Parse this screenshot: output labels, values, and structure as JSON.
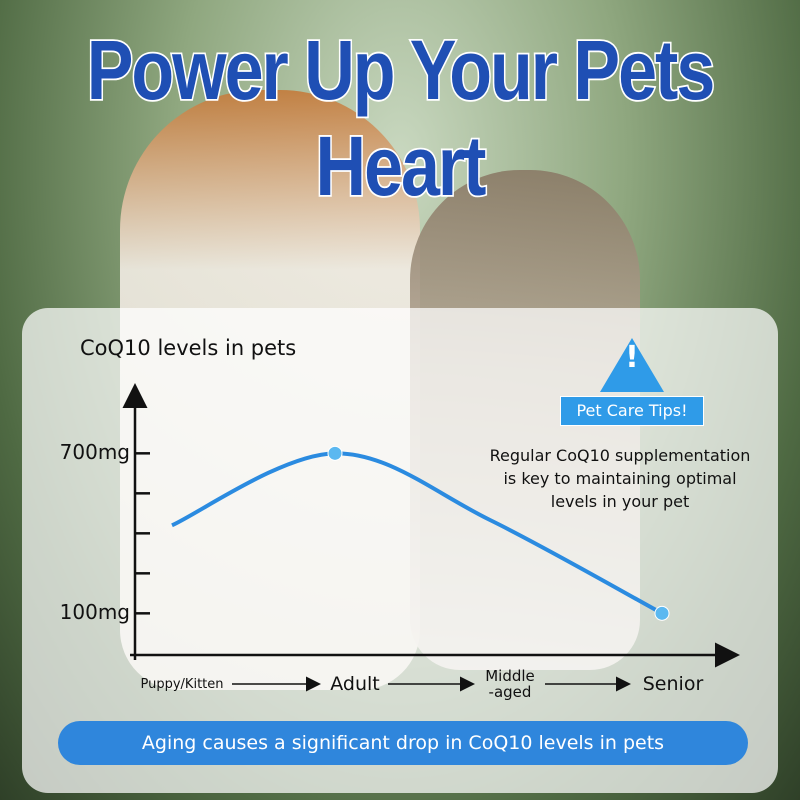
{
  "header": {
    "title": "Power Up Your Pets Heart"
  },
  "chart_data": {
    "type": "line",
    "title": "CoQ10 levels in pets",
    "categories": [
      "Puppy/Kitten",
      "Adult",
      "Middle\n-aged",
      "Senior"
    ],
    "values": [
      430,
      700,
      450,
      100
    ],
    "color": "#2b8be0",
    "ylim": [
      -60,
      960
    ],
    "yticks": [
      {
        "value": 700,
        "label": "700mg"
      },
      {
        "value": 550,
        "label": null
      },
      {
        "value": 400,
        "label": null
      },
      {
        "value": 250,
        "label": null
      },
      {
        "value": 100,
        "label": "100mg"
      }
    ]
  },
  "tip": {
    "label": "Pet Care Tips!",
    "text": "Regular CoQ10 supplementation\nis key to maintaining optimal\nlevels in your pet"
  },
  "footer": "Aging causes a significant drop in CoQ10 levels in pets"
}
